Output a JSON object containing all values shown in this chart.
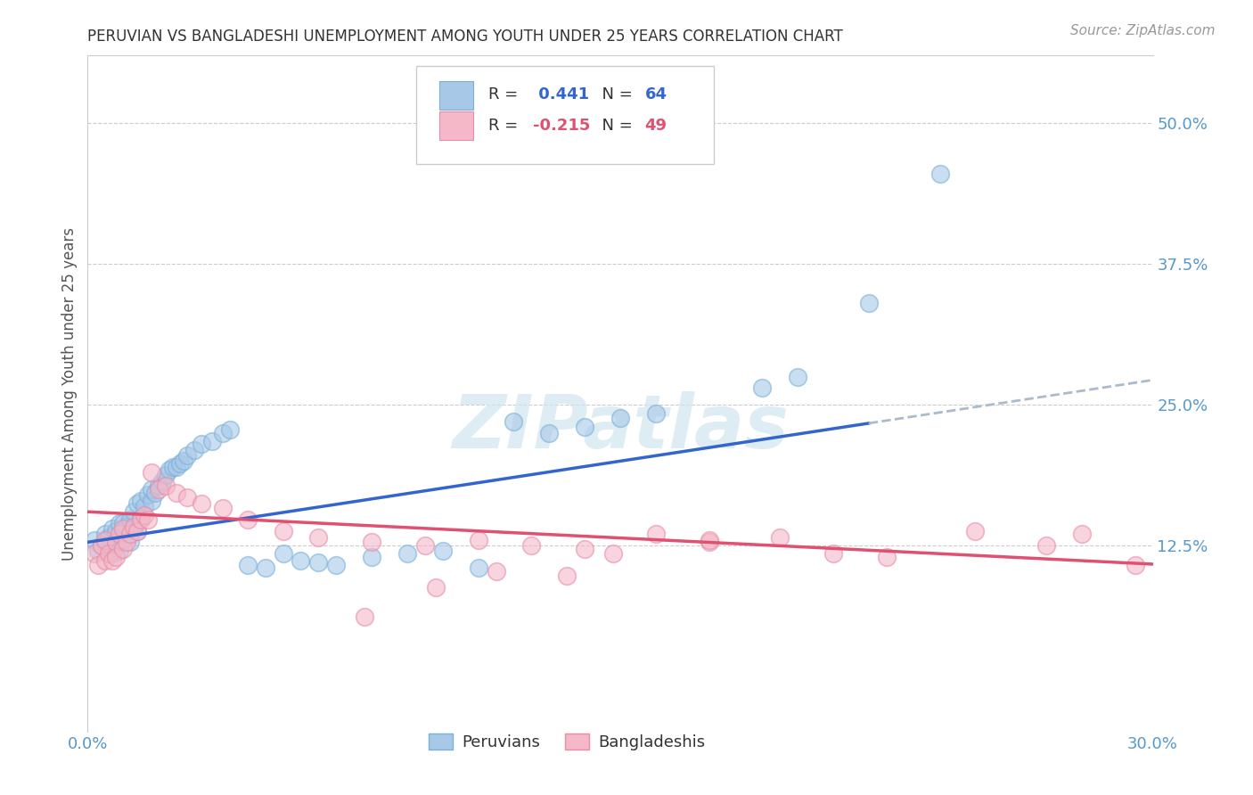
{
  "title": "PERUVIAN VS BANGLADESHI UNEMPLOYMENT AMONG YOUTH UNDER 25 YEARS CORRELATION CHART",
  "source": "Source: ZipAtlas.com",
  "ylabel": "Unemployment Among Youth under 25 years",
  "xlim": [
    0.0,
    0.3
  ],
  "ylim": [
    -0.04,
    0.56
  ],
  "ytick_labels": [
    "12.5%",
    "25.0%",
    "37.5%",
    "50.0%"
  ],
  "ytick_values": [
    0.125,
    0.25,
    0.375,
    0.5
  ],
  "peruvian_color": "#a8c8e8",
  "bangladeshi_color": "#f4b8c8",
  "peruvian_edge": "#7ab0d8",
  "bangladeshi_edge": "#e88ca8",
  "peruvian_line_color": "#3366cc",
  "bangladeshi_line_color": "#e05070",
  "dash_color": "#aabbcc",
  "peruvian_R": 0.441,
  "peruvian_N": 64,
  "bangladeshi_R": -0.215,
  "bangladeshi_N": 49,
  "background_color": "#ffffff",
  "watermark_text": "ZIPatlas",
  "watermark_color": "#d0e4f0",
  "grid_color": "#cccccc",
  "title_color": "#333333",
  "tick_color": "#5599cc",
  "ylabel_color": "#555555",
  "source_color": "#999999",
  "legend_text_color": "#333333",
  "peru_line_intercept": 0.128,
  "peru_line_slope": 0.48,
  "bang_line_intercept": 0.155,
  "bang_line_slope": -0.155,
  "peruvian_scatter_x": [
    0.002,
    0.003,
    0.004,
    0.005,
    0.005,
    0.006,
    0.006,
    0.007,
    0.007,
    0.008,
    0.008,
    0.009,
    0.009,
    0.01,
    0.01,
    0.01,
    0.011,
    0.011,
    0.012,
    0.012,
    0.013,
    0.013,
    0.014,
    0.014,
    0.015,
    0.015,
    0.016,
    0.017,
    0.018,
    0.018,
    0.019,
    0.02,
    0.021,
    0.022,
    0.023,
    0.024,
    0.025,
    0.026,
    0.027,
    0.028,
    0.03,
    0.032,
    0.035,
    0.038,
    0.04,
    0.045,
    0.05,
    0.055,
    0.06,
    0.065,
    0.07,
    0.08,
    0.09,
    0.1,
    0.11,
    0.12,
    0.13,
    0.14,
    0.15,
    0.16,
    0.19,
    0.2,
    0.22,
    0.24
  ],
  "peruvian_scatter_y": [
    0.13,
    0.12,
    0.125,
    0.128,
    0.135,
    0.122,
    0.132,
    0.118,
    0.14,
    0.125,
    0.138,
    0.12,
    0.145,
    0.13,
    0.138,
    0.145,
    0.132,
    0.142,
    0.128,
    0.148,
    0.14,
    0.155,
    0.138,
    0.162,
    0.15,
    0.165,
    0.16,
    0.17,
    0.165,
    0.175,
    0.172,
    0.178,
    0.182,
    0.188,
    0.192,
    0.195,
    0.195,
    0.198,
    0.2,
    0.205,
    0.21,
    0.215,
    0.218,
    0.225,
    0.228,
    0.108,
    0.105,
    0.118,
    0.112,
    0.11,
    0.108,
    0.115,
    0.118,
    0.12,
    0.105,
    0.235,
    0.225,
    0.23,
    0.238,
    0.242,
    0.265,
    0.275,
    0.34,
    0.455
  ],
  "bangladeshi_scatter_x": [
    0.002,
    0.003,
    0.004,
    0.005,
    0.005,
    0.006,
    0.007,
    0.008,
    0.008,
    0.009,
    0.01,
    0.01,
    0.011,
    0.012,
    0.013,
    0.014,
    0.015,
    0.016,
    0.017,
    0.018,
    0.02,
    0.022,
    0.025,
    0.028,
    0.032,
    0.038,
    0.045,
    0.055,
    0.065,
    0.08,
    0.095,
    0.11,
    0.125,
    0.14,
    0.16,
    0.175,
    0.195,
    0.21,
    0.225,
    0.25,
    0.27,
    0.28,
    0.295,
    0.135,
    0.175,
    0.148,
    0.115,
    0.098,
    0.078
  ],
  "bangladeshi_scatter_y": [
    0.118,
    0.108,
    0.125,
    0.112,
    0.13,
    0.118,
    0.112,
    0.128,
    0.115,
    0.135,
    0.122,
    0.14,
    0.128,
    0.135,
    0.142,
    0.138,
    0.148,
    0.152,
    0.148,
    0.19,
    0.175,
    0.178,
    0.172,
    0.168,
    0.162,
    0.158,
    0.148,
    0.138,
    0.132,
    0.128,
    0.125,
    0.13,
    0.125,
    0.122,
    0.135,
    0.128,
    0.132,
    0.118,
    0.115,
    0.138,
    0.125,
    0.135,
    0.108,
    0.098,
    0.13,
    0.118,
    0.102,
    0.088,
    0.062
  ]
}
